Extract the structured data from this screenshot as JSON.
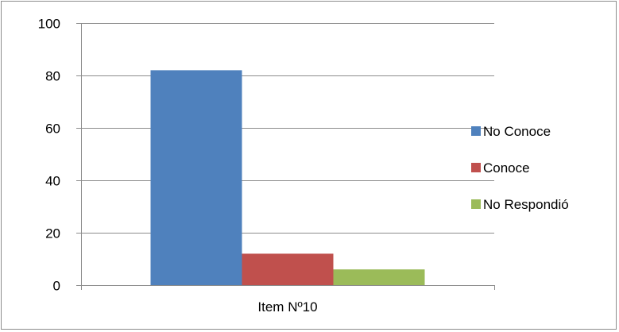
{
  "chart_data": {
    "type": "bar",
    "categories": [
      "Item Nº10"
    ],
    "series": [
      {
        "name": "No Conoce",
        "values": [
          82
        ],
        "color": "#4f81bd"
      },
      {
        "name": "Conoce",
        "values": [
          12
        ],
        "color": "#c0504d"
      },
      {
        "name": "No Respondió",
        "values": [
          6
        ],
        "color": "#9bbb59"
      }
    ],
    "ylim": [
      0,
      100
    ],
    "yticks": [
      0,
      20,
      40,
      60,
      80,
      100
    ],
    "ytick_labels": [
      "0",
      "20",
      "40",
      "60",
      "80",
      "100"
    ],
    "grid": true,
    "legend": "right"
  }
}
